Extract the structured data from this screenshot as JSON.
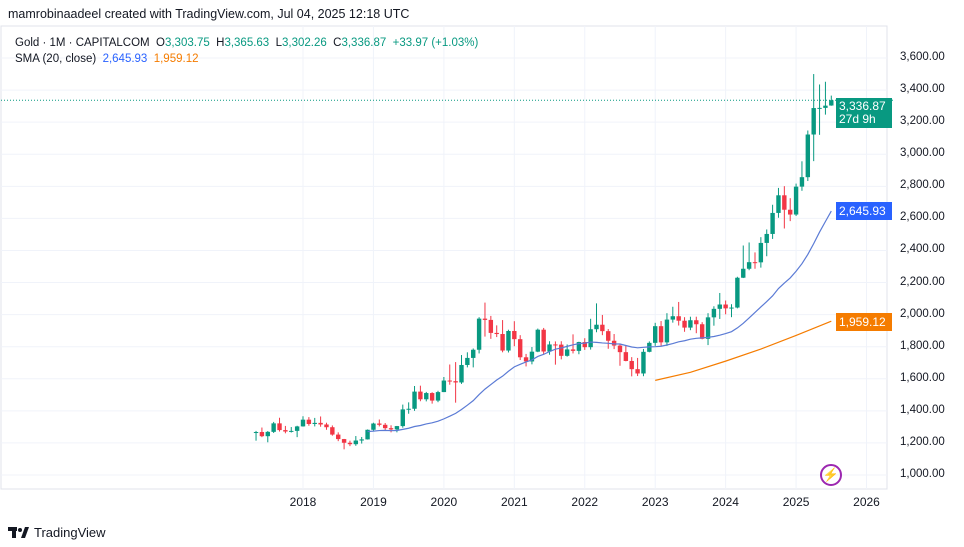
{
  "credit": "mamrobinaadeel created with TradingView.com, Jul 04, 2025 12:18 UTC",
  "legend": {
    "symbol": "Gold · 1M · CAPITALCOM",
    "o_label": "O",
    "o": "3,303.75",
    "h_label": "H",
    "h": "3,365.63",
    "l_label": "L",
    "l": "3,302.26",
    "c_label": "C",
    "c": "3,336.87",
    "change": "+33.97 (+1.03%)",
    "sma_label": "SMA (20, close)",
    "sma1": "2,645.93",
    "sma2": "1,959.12"
  },
  "price_labels": {
    "last": "3,336.87",
    "countdown": "27d 9h",
    "sma1": "2,645.93",
    "sma2": "1,959.12"
  },
  "footer": {
    "brand": "TradingView"
  },
  "colors": {
    "up": "#089981",
    "down": "#F23645",
    "sma1": "#5B7BD5",
    "sma2": "#F57C00",
    "last": "#089981",
    "sma1_label": "#2962FF",
    "sma2_label": "#F57C00"
  },
  "chart_data": {
    "type": "candlestick",
    "title": "Gold · 1M · CAPITALCOM",
    "start_month": "2017-05",
    "ylim": [
      900,
      3700
    ],
    "y_ticks": [
      "1,000.00",
      "1,200.00",
      "1,400.00",
      "1,600.00",
      "1,800.00",
      "2,000.00",
      "2,200.00",
      "2,400.00",
      "2,600.00",
      "2,800.00",
      "3,000.00",
      "3,200.00",
      "3,400.00",
      "3,600.00"
    ],
    "x_ticks": [
      "2018",
      "2019",
      "2020",
      "2021",
      "2022",
      "2023",
      "2024",
      "2025",
      "2026"
    ],
    "ohlc": [
      [
        1268,
        1275,
        1214,
        1268
      ],
      [
        1268,
        1296,
        1236,
        1242
      ],
      [
        1242,
        1274,
        1204,
        1269
      ],
      [
        1269,
        1331,
        1262,
        1322
      ],
      [
        1322,
        1357,
        1271,
        1280
      ],
      [
        1280,
        1306,
        1260,
        1271
      ],
      [
        1271,
        1299,
        1265,
        1275
      ],
      [
        1275,
        1307,
        1236,
        1303
      ],
      [
        1303,
        1366,
        1302,
        1345
      ],
      [
        1345,
        1361,
        1307,
        1318
      ],
      [
        1318,
        1356,
        1303,
        1325
      ],
      [
        1325,
        1365,
        1301,
        1315
      ],
      [
        1315,
        1326,
        1282,
        1298
      ],
      [
        1298,
        1309,
        1245,
        1252
      ],
      [
        1252,
        1266,
        1211,
        1224
      ],
      [
        1224,
        1225,
        1160,
        1201
      ],
      [
        1201,
        1214,
        1180,
        1192
      ],
      [
        1192,
        1243,
        1182,
        1215
      ],
      [
        1215,
        1237,
        1196,
        1222
      ],
      [
        1222,
        1284,
        1221,
        1282
      ],
      [
        1282,
        1326,
        1275,
        1321
      ],
      [
        1321,
        1346,
        1303,
        1313
      ],
      [
        1313,
        1324,
        1281,
        1292
      ],
      [
        1292,
        1310,
        1266,
        1284
      ],
      [
        1284,
        1306,
        1266,
        1305
      ],
      [
        1305,
        1439,
        1295,
        1409
      ],
      [
        1409,
        1453,
        1382,
        1413
      ],
      [
        1413,
        1555,
        1400,
        1520
      ],
      [
        1520,
        1557,
        1460,
        1472
      ],
      [
        1472,
        1518,
        1459,
        1511
      ],
      [
        1511,
        1516,
        1445,
        1464
      ],
      [
        1464,
        1525,
        1454,
        1517
      ],
      [
        1517,
        1611,
        1517,
        1589
      ],
      [
        1589,
        1689,
        1563,
        1585
      ],
      [
        1585,
        1704,
        1451,
        1577
      ],
      [
        1577,
        1748,
        1568,
        1686
      ],
      [
        1686,
        1765,
        1671,
        1730
      ],
      [
        1730,
        1789,
        1671,
        1781
      ],
      [
        1781,
        1984,
        1758,
        1975
      ],
      [
        1975,
        2075,
        1863,
        1967
      ],
      [
        1967,
        1992,
        1849,
        1886
      ],
      [
        1886,
        1933,
        1860,
        1879
      ],
      [
        1879,
        1966,
        1765,
        1776
      ],
      [
        1776,
        1906,
        1764,
        1898
      ],
      [
        1898,
        1959,
        1803,
        1847
      ],
      [
        1847,
        1872,
        1717,
        1734
      ],
      [
        1734,
        1755,
        1677,
        1708
      ],
      [
        1708,
        1798,
        1690,
        1769
      ],
      [
        1769,
        1913,
        1766,
        1906
      ],
      [
        1906,
        1917,
        1750,
        1770
      ],
      [
        1770,
        1834,
        1750,
        1814
      ],
      [
        1814,
        1833,
        1688,
        1813
      ],
      [
        1813,
        1834,
        1721,
        1743
      ],
      [
        1743,
        1814,
        1738,
        1783
      ],
      [
        1783,
        1877,
        1758,
        1774
      ],
      [
        1774,
        1831,
        1753,
        1829
      ],
      [
        1829,
        1853,
        1780,
        1797
      ],
      [
        1797,
        1974,
        1782,
        1909
      ],
      [
        1909,
        2070,
        1890,
        1937
      ],
      [
        1937,
        1998,
        1872,
        1897
      ],
      [
        1897,
        1910,
        1787,
        1837
      ],
      [
        1837,
        1879,
        1785,
        1807
      ],
      [
        1807,
        1814,
        1681,
        1766
      ],
      [
        1766,
        1808,
        1709,
        1711
      ],
      [
        1711,
        1735,
        1615,
        1660
      ],
      [
        1660,
        1730,
        1617,
        1633
      ],
      [
        1633,
        1786,
        1616,
        1768
      ],
      [
        1768,
        1833,
        1765,
        1824
      ],
      [
        1824,
        1949,
        1805,
        1928
      ],
      [
        1928,
        1960,
        1805,
        1827
      ],
      [
        1827,
        2009,
        1805,
        1969
      ],
      [
        1969,
        2049,
        1950,
        1990
      ],
      [
        1990,
        2079,
        1932,
        1962
      ],
      [
        1962,
        1984,
        1893,
        1919
      ],
      [
        1919,
        1987,
        1903,
        1965
      ],
      [
        1965,
        1987,
        1884,
        1940
      ],
      [
        1940,
        1953,
        1846,
        1849
      ],
      [
        1849,
        2009,
        1810,
        1983
      ],
      [
        1983,
        2052,
        1931,
        2036
      ],
      [
        2036,
        2135,
        1973,
        2063
      ],
      [
        2063,
        2088,
        2002,
        2039
      ],
      [
        2039,
        2065,
        1984,
        2044
      ],
      [
        2044,
        2236,
        2039,
        2230
      ],
      [
        2230,
        2431,
        2228,
        2286
      ],
      [
        2286,
        2450,
        2277,
        2327
      ],
      [
        2327,
        2388,
        2286,
        2326
      ],
      [
        2326,
        2483,
        2293,
        2447
      ],
      [
        2447,
        2531,
        2364,
        2503
      ],
      [
        2503,
        2685,
        2472,
        2634
      ],
      [
        2634,
        2790,
        2604,
        2744
      ],
      [
        2744,
        2801,
        2537,
        2654
      ],
      [
        2654,
        2726,
        2583,
        2624
      ],
      [
        2624,
        2817,
        2615,
        2798
      ],
      [
        2798,
        2956,
        2772,
        2857
      ],
      [
        2857,
        3148,
        2833,
        3123
      ],
      [
        3123,
        3500,
        2957,
        3288
      ],
      [
        3288,
        3435,
        3121,
        3289
      ],
      [
        3289,
        3452,
        3247,
        3303
      ],
      [
        3303.75,
        3365.63,
        3302.26,
        3336.87
      ]
    ],
    "sma1": {
      "name": "SMA 20",
      "period": 20,
      "last": 2645.93
    },
    "sma2": {
      "name": "SMA",
      "points": [
        [
          68,
          1590
        ],
        [
          74,
          1640
        ],
        [
          80,
          1710
        ],
        [
          86,
          1785
        ],
        [
          92,
          1870
        ],
        [
          98,
          1959.12
        ]
      ]
    },
    "last_price": 3336.87
  }
}
